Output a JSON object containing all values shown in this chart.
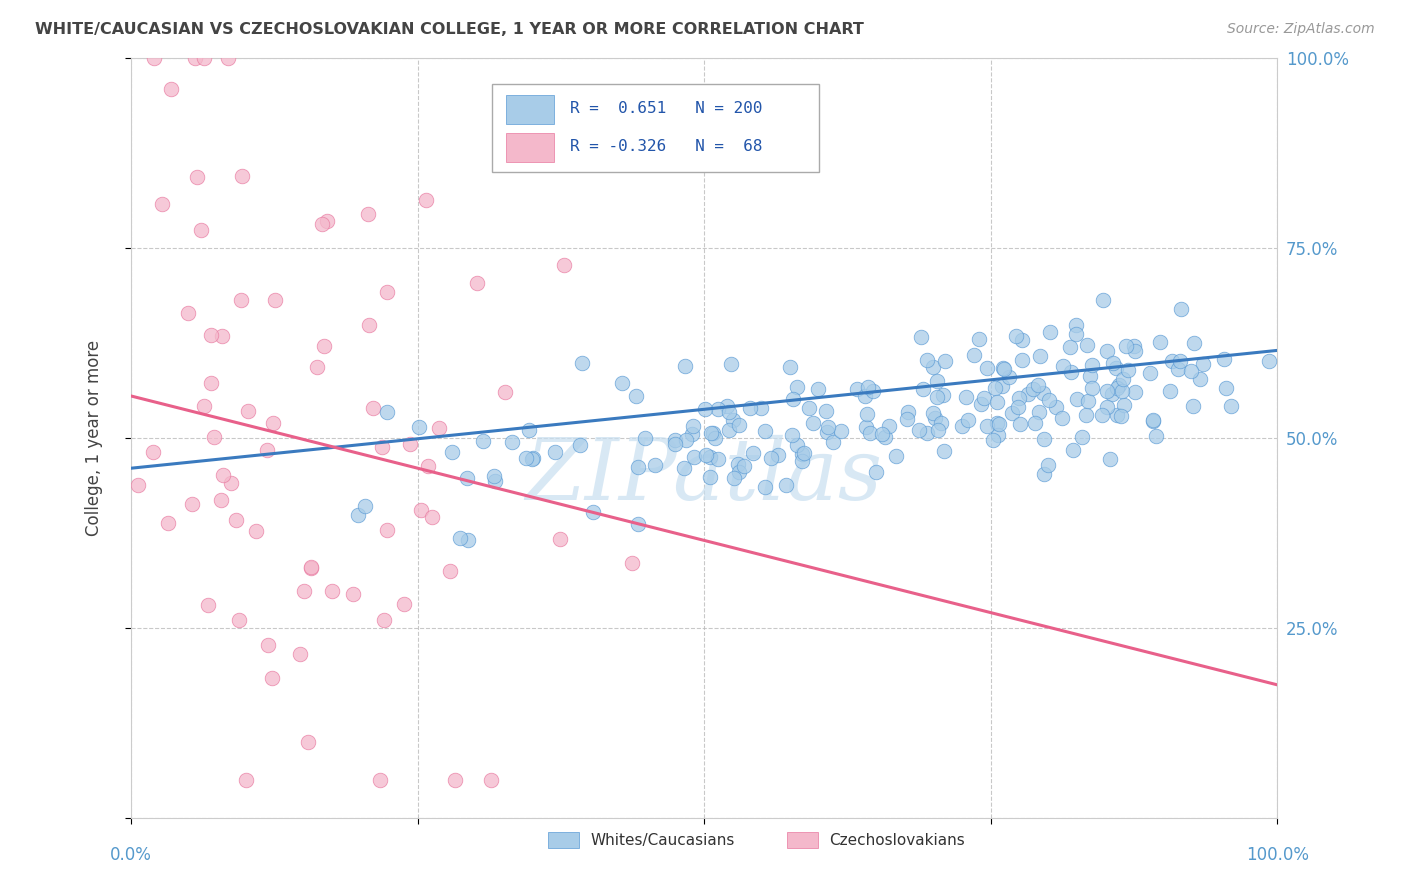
{
  "title": "WHITE/CAUCASIAN VS CZECHOSLOVAKIAN COLLEGE, 1 YEAR OR MORE CORRELATION CHART",
  "source": "Source: ZipAtlas.com",
  "ylabel": "College, 1 year or more",
  "blue_R": 0.651,
  "blue_N": 200,
  "pink_R": -0.326,
  "pink_N": 68,
  "blue_color": "#a8cce8",
  "pink_color": "#f4b8cb",
  "blue_edge_color": "#5b9bd5",
  "pink_edge_color": "#e879a0",
  "blue_line_color": "#3a7abf",
  "pink_line_color": "#e8608a",
  "legend_label_blue": "Whites/Caucasians",
  "legend_label_pink": "Czechoslovakians",
  "watermark": "ZIPatlas",
  "background_color": "#ffffff",
  "grid_color": "#bbbbbb",
  "title_color": "#444444",
  "tick_color": "#5599cc",
  "right_ytick_color": "#5599cc",
  "blue_trend_x0": 0.0,
  "blue_trend_y0": 0.46,
  "blue_trend_x1": 1.0,
  "blue_trend_y1": 0.615,
  "pink_trend_x0": 0.0,
  "pink_trend_y0": 0.555,
  "pink_trend_x1": 1.0,
  "pink_trend_y1": 0.175,
  "xlim": [
    0,
    1
  ],
  "ylim": [
    0,
    1
  ],
  "ytick_positions": [
    0.0,
    0.25,
    0.5,
    0.75,
    1.0
  ],
  "ytick_labels": [
    "",
    "25.0%",
    "50.0%",
    "75.0%",
    "100.0%"
  ],
  "xtick_positions": [
    0.0,
    0.25,
    0.5,
    0.75,
    1.0
  ]
}
